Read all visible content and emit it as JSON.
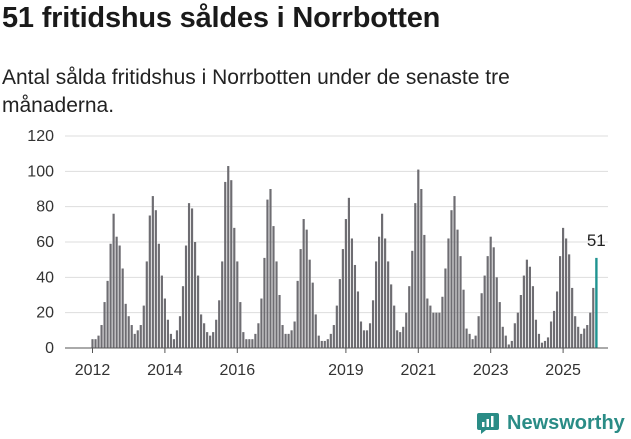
{
  "header": {
    "title": "51 fritidshus såldes i Norrbotten",
    "subtitle": "Antal sålda fritidshus i Norrbotten under de senaste tre månaderna."
  },
  "brand": {
    "name": "Newsworthy",
    "icon": "newsworthy-logo-icon",
    "color": "#2a8c86"
  },
  "colors": {
    "bar": "#6e6d72",
    "highlight": "#1f9390",
    "grid": "#dddddd",
    "axis": "#555555"
  },
  "chart_data": {
    "type": "bar",
    "ylim": [
      0,
      120
    ],
    "y_ticks": [
      0,
      20,
      40,
      60,
      80,
      100,
      120
    ],
    "x_tick_labels": [
      "2012",
      "2014",
      "2016",
      "2019",
      "2021",
      "2023",
      "2025"
    ],
    "x_tick_positions": [
      2012,
      2014,
      2016,
      2019,
      2021,
      2023,
      2025
    ],
    "x_start": 2012,
    "x_end": 2025.75,
    "bars_per_year": 12,
    "grid": true,
    "legend": "none",
    "highlight": {
      "value": 51,
      "label": "51"
    },
    "values": [
      5,
      5,
      7,
      13,
      26,
      38,
      59,
      76,
      63,
      58,
      45,
      25,
      18,
      13,
      8,
      10,
      13,
      24,
      49,
      75,
      86,
      78,
      59,
      41,
      28,
      16,
      8,
      5,
      10,
      18,
      35,
      58,
      82,
      79,
      60,
      41,
      19,
      14,
      9,
      7,
      9,
      16,
      27,
      49,
      94,
      103,
      95,
      68,
      49,
      26,
      9,
      5,
      5,
      5,
      8,
      14,
      28,
      51,
      84,
      90,
      69,
      49,
      30,
      13,
      8,
      8,
      10,
      15,
      38,
      56,
      73,
      67,
      50,
      37,
      19,
      7,
      4,
      4,
      5,
      8,
      13,
      24,
      39,
      56,
      73,
      85,
      62,
      47,
      32,
      15,
      10,
      10,
      14,
      27,
      49,
      63,
      76,
      62,
      49,
      36,
      24,
      10,
      9,
      12,
      20,
      35,
      55,
      82,
      101,
      90,
      64,
      28,
      24,
      20,
      20,
      20,
      29,
      45,
      62,
      78,
      86,
      67,
      52,
      33,
      11,
      8,
      5,
      7,
      18,
      31,
      41,
      52,
      63,
      57,
      40,
      26,
      12,
      7,
      2,
      4,
      14,
      20,
      30,
      41,
      50,
      46,
      35,
      16,
      8,
      3,
      4,
      6,
      15,
      21,
      32,
      52,
      68,
      62,
      53,
      34,
      18,
      12,
      8,
      11,
      13,
      20,
      34,
      51
    ]
  }
}
